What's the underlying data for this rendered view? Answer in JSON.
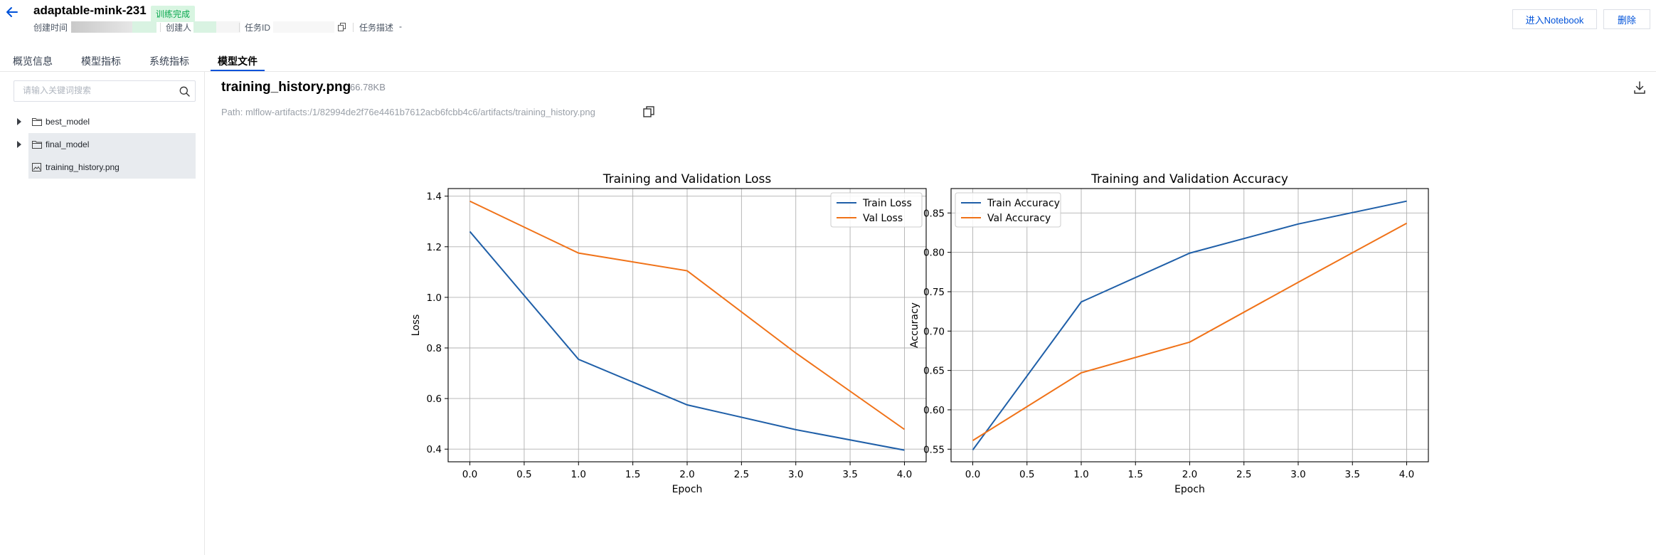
{
  "header": {
    "title": "adaptable-mink-231",
    "status": "训练完成",
    "created_time_label": "创建时间",
    "creator_label": "创建人",
    "task_id_label": "任务ID",
    "task_desc_label": "任务描述",
    "task_desc_value": "-",
    "notebook_button": "进入Notebook",
    "delete_button": "删除"
  },
  "tabs": [
    {
      "label": "概览信息"
    },
    {
      "label": "模型指标"
    },
    {
      "label": "系统指标"
    },
    {
      "label": "模型文件"
    }
  ],
  "sidebar": {
    "search_placeholder": "请输入关键词搜索",
    "items": [
      {
        "label": "best_model",
        "type": "folder",
        "expandable": true
      },
      {
        "label": "final_model",
        "type": "folder",
        "expandable": true
      },
      {
        "label": "training_history.png",
        "type": "image",
        "expandable": false
      }
    ]
  },
  "file": {
    "name": "training_history.png",
    "size": "66.78KB",
    "path": "Path: mlflow-artifacts:/1/82994de2f76e4461b7612acb6fcbb4c6/artifacts/training_history.png"
  },
  "colors": {
    "accent": "#0052d9",
    "series_blue": "#1f5fa8",
    "series_orange": "#f07218",
    "success": "#0aa84f"
  },
  "chart_data": [
    {
      "type": "line",
      "title": "Training and Validation Loss",
      "xlabel": "Epoch",
      "ylabel": "Loss",
      "x": [
        0,
        1,
        2,
        3,
        4
      ],
      "series": [
        {
          "name": "Train Loss",
          "values": [
            1.26,
            0.755,
            0.575,
            0.477,
            0.396
          ]
        },
        {
          "name": "Val Loss",
          "values": [
            1.38,
            1.175,
            1.105,
            0.78,
            0.478
          ]
        }
      ],
      "xlim": [
        -0.2,
        4.2
      ],
      "ylim": [
        0.35,
        1.43
      ],
      "xticks": [
        "0.0",
        "0.5",
        "1.0",
        "1.5",
        "2.0",
        "2.5",
        "3.0",
        "3.5",
        "4.0"
      ],
      "yticks": [
        "0.4",
        "0.6",
        "0.8",
        "1.0",
        "1.2",
        "1.4"
      ],
      "grid": true,
      "legend": "upper right"
    },
    {
      "type": "line",
      "title": "Training and Validation Accuracy",
      "xlabel": "Epoch",
      "ylabel": "Accuracy",
      "x": [
        0,
        1,
        2,
        3,
        4
      ],
      "series": [
        {
          "name": "Train Accuracy",
          "values": [
            0.549,
            0.737,
            0.799,
            0.836,
            0.865
          ]
        },
        {
          "name": "Val Accuracy",
          "values": [
            0.561,
            0.647,
            0.686,
            0.762,
            0.837
          ]
        }
      ],
      "xlim": [
        -0.2,
        4.2
      ],
      "ylim": [
        0.534,
        0.881
      ],
      "xticks": [
        "0.0",
        "0.5",
        "1.0",
        "1.5",
        "2.0",
        "2.5",
        "3.0",
        "3.5",
        "4.0"
      ],
      "yticks": [
        "0.55",
        "0.60",
        "0.65",
        "0.70",
        "0.75",
        "0.80",
        "0.85"
      ],
      "grid": true,
      "legend": "upper left"
    }
  ]
}
